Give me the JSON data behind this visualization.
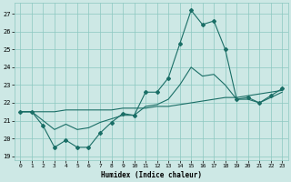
{
  "xlabel": "Humidex (Indice chaleur)",
  "bg_color": "#cde8e5",
  "grid_color": "#8cc8c0",
  "line_color": "#1a6e66",
  "xlim": [
    -0.5,
    23.5
  ],
  "ylim": [
    18.8,
    27.6
  ],
  "yticks": [
    19,
    20,
    21,
    22,
    23,
    24,
    25,
    26,
    27
  ],
  "xticks": [
    0,
    1,
    2,
    3,
    4,
    5,
    6,
    7,
    8,
    9,
    10,
    11,
    12,
    13,
    14,
    15,
    16,
    17,
    18,
    19,
    20,
    21,
    22,
    23
  ],
  "line1_x": [
    0,
    1,
    2,
    3,
    4,
    5,
    6,
    7,
    8,
    9,
    10,
    11,
    12,
    13,
    14,
    15,
    16,
    17,
    18,
    19,
    20,
    21,
    22,
    23
  ],
  "line1_y": [
    21.5,
    21.5,
    20.7,
    19.5,
    19.9,
    19.5,
    19.5,
    20.3,
    20.9,
    21.4,
    21.3,
    22.6,
    22.6,
    23.4,
    25.3,
    27.2,
    26.4,
    26.6,
    25.0,
    22.2,
    22.3,
    22.0,
    22.4,
    22.8
  ],
  "line2_x": [
    0,
    1,
    2,
    3,
    4,
    5,
    6,
    7,
    8,
    9,
    10,
    11,
    12,
    13,
    14,
    15,
    16,
    17,
    18,
    19,
    20,
    21,
    22,
    23
  ],
  "line2_y": [
    21.5,
    21.5,
    21.5,
    21.5,
    21.6,
    21.6,
    21.6,
    21.6,
    21.6,
    21.7,
    21.7,
    21.7,
    21.8,
    21.8,
    21.9,
    22.0,
    22.1,
    22.2,
    22.3,
    22.3,
    22.4,
    22.5,
    22.6,
    22.7
  ],
  "line3_x": [
    0,
    1,
    2,
    3,
    4,
    5,
    6,
    7,
    8,
    9,
    10,
    11,
    12,
    13,
    14,
    15,
    16,
    17,
    18,
    19,
    20,
    21,
    22,
    23
  ],
  "line3_y": [
    21.5,
    21.5,
    21.0,
    20.5,
    20.8,
    20.5,
    20.6,
    20.9,
    21.1,
    21.3,
    21.3,
    21.8,
    21.9,
    22.2,
    23.0,
    24.0,
    23.5,
    23.6,
    23.0,
    22.2,
    22.2,
    22.0,
    22.3,
    22.6
  ]
}
